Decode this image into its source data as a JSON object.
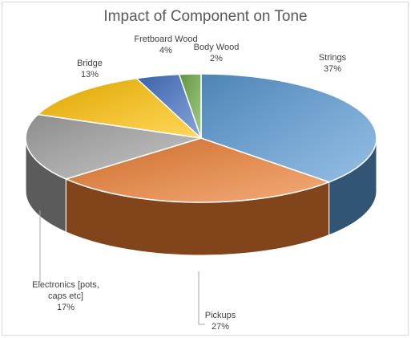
{
  "chart_data": {
    "type": "pie3d",
    "title": "Impact of Component on Tone",
    "categories": [
      "Strings",
      "Pickups",
      "Electronics [pots, caps etc]",
      "Bridge",
      "Fretboard Wood",
      "Body Wood"
    ],
    "values": [
      37,
      27,
      17,
      13,
      4,
      2
    ],
    "value_labels": [
      "37%",
      "27%",
      "17%",
      "13%",
      "4%",
      "2%"
    ],
    "colors": [
      "#5b9bd5",
      "#ed7d31",
      "#a5a5a5",
      "#ffc000",
      "#4472c4",
      "#70ad47"
    ]
  }
}
